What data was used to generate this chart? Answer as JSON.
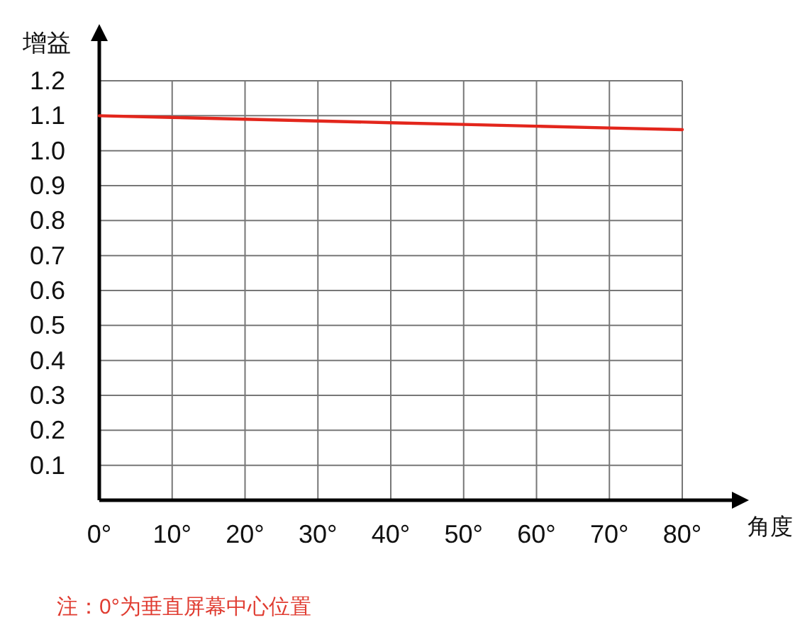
{
  "chart_data": {
    "type": "line",
    "xlabel": "角度",
    "ylabel": "增益",
    "x": [
      0,
      10,
      20,
      30,
      40,
      50,
      60,
      70,
      80
    ],
    "series": [
      {
        "color": "#e3261c",
        "values": [
          1.1,
          1.095,
          1.09,
          1.085,
          1.08,
          1.075,
          1.07,
          1.065,
          1.06
        ]
      }
    ],
    "xlim": [
      0,
      80
    ],
    "xticks": [
      {
        "value": 0,
        "label": "0°"
      },
      {
        "value": 10,
        "label": "10°"
      },
      {
        "value": 20,
        "label": "20°"
      },
      {
        "value": 30,
        "label": "30°"
      },
      {
        "value": 40,
        "label": "40°"
      },
      {
        "value": 50,
        "label": "50°"
      },
      {
        "value": 60,
        "label": "60°"
      },
      {
        "value": 70,
        "label": "70°"
      },
      {
        "value": 80,
        "label": "80°"
      }
    ],
    "ylim": [
      0,
      1.2
    ],
    "yticks": [
      0.1,
      0.2,
      0.3,
      0.4,
      0.5,
      0.6,
      0.7,
      0.8,
      0.9,
      {
        "value": 1.0,
        "label": "1.0"
      },
      1.1,
      1.2
    ],
    "grid": true,
    "marker": "none",
    "line_style": "solid",
    "annotations": [
      "注：0°为垂直屏幕中心位置"
    ]
  }
}
